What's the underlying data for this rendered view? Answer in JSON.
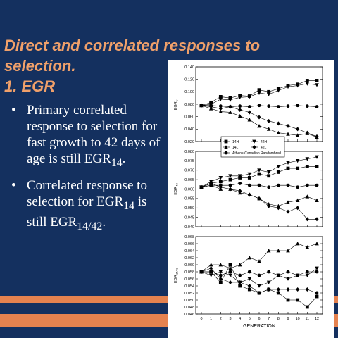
{
  "slide": {
    "title_line1": "Direct and correlated responses to selection.",
    "title_line2": "1.  EGR",
    "bullets": [
      {
        "text_main": "Primary correlated response to selection for fast growth to 42 days of age is still EGR",
        "sub": "14",
        "tail": "."
      },
      {
        "text_main": "Correlated response to selection for EGR",
        "sub": "14",
        "mid": " is still EGR",
        "sub2": "14/42",
        "tail": "."
      }
    ],
    "colors": {
      "background": "#14305f",
      "title": "#f0a06a",
      "stripe": "#e5824f",
      "text": "#ffffff"
    }
  },
  "chart_data": {
    "type": "line",
    "xlabel": "GENERATION",
    "x": [
      0,
      1,
      2,
      3,
      4,
      5,
      6,
      7,
      8,
      9,
      10,
      11,
      12
    ],
    "x_ticks": [
      "0",
      "1",
      "2",
      "3",
      "4",
      "5",
      "6",
      "7",
      "8",
      "9",
      "10",
      "11",
      "12"
    ],
    "legend": [
      {
        "name": "14H",
        "marker": "square"
      },
      {
        "name": "42H",
        "marker": "triangle-down"
      },
      {
        "name": "14L",
        "marker": "triangle-up"
      },
      {
        "name": "42L",
        "marker": "diamond"
      },
      {
        "name": "Athens-Canadian Randombred",
        "marker": "circle"
      }
    ],
    "panels": [
      {
        "ylabel": "EGR14",
        "ylim": [
          0.02,
          0.14
        ],
        "yticks": [
          "0.140",
          "0.120",
          "0.100",
          "0.080",
          "0.060",
          "0.040",
          "0.020"
        ],
        "ytick_values": [
          0.14,
          0.12,
          0.1,
          0.08,
          0.06,
          0.04,
          0.02
        ],
        "series": [
          {
            "name": "14H",
            "marker": "square",
            "values": [
              0.078,
              0.083,
              0.092,
              0.09,
              0.094,
              0.093,
              0.103,
              0.1,
              0.105,
              0.11,
              0.112,
              0.118,
              0.118
            ]
          },
          {
            "name": "42H",
            "marker": "triangle-down",
            "values": [
              0.078,
              0.08,
              0.088,
              0.087,
              0.091,
              0.092,
              0.098,
              0.096,
              0.102,
              0.108,
              0.11,
              0.113,
              0.111
            ]
          },
          {
            "name": "14L",
            "marker": "triangle-up",
            "values": [
              0.078,
              0.073,
              0.068,
              0.067,
              0.061,
              0.055,
              0.045,
              0.04,
              0.034,
              0.032,
              0.03,
              0.033,
              0.027
            ]
          },
          {
            "name": "42L",
            "marker": "diamond",
            "values": [
              0.078,
              0.076,
              0.073,
              0.076,
              0.071,
              0.067,
              0.059,
              0.053,
              0.049,
              0.045,
              0.04,
              0.034,
              0.028
            ]
          },
          {
            "name": "Athens-Canadian Randombred",
            "marker": "circle",
            "values": [
              0.078,
              0.078,
              0.077,
              0.076,
              0.077,
              0.076,
              0.078,
              0.077,
              0.076,
              0.077,
              0.078,
              0.077,
              0.076
            ]
          }
        ]
      },
      {
        "ylabel": "EGR42",
        "ylim": [
          0.04,
          0.08
        ],
        "yticks": [
          "0.080",
          "0.075",
          "0.070",
          "0.065",
          "0.060",
          "0.055",
          "0.050",
          "0.045",
          "0.040"
        ],
        "ytick_values": [
          0.08,
          0.075,
          0.07,
          0.065,
          0.06,
          0.055,
          0.05,
          0.045,
          0.04
        ],
        "series": [
          {
            "name": "14H",
            "marker": "square",
            "values": [
              0.061,
              0.063,
              0.064,
              0.065,
              0.066,
              0.066,
              0.068,
              0.067,
              0.069,
              0.071,
              0.071,
              0.072,
              0.072
            ]
          },
          {
            "name": "42H",
            "marker": "triangle-down",
            "values": [
              0.061,
              0.064,
              0.066,
              0.067,
              0.067,
              0.068,
              0.07,
              0.069,
              0.072,
              0.074,
              0.075,
              0.076,
              0.077
            ]
          },
          {
            "name": "14L",
            "marker": "triangle-up",
            "values": [
              0.061,
              0.062,
              0.06,
              0.06,
              0.058,
              0.057,
              0.055,
              0.052,
              0.051,
              0.053,
              0.054,
              0.056,
              0.054
            ]
          },
          {
            "name": "42L",
            "marker": "diamond",
            "values": [
              0.061,
              0.063,
              0.061,
              0.06,
              0.059,
              0.057,
              0.055,
              0.051,
              0.05,
              0.048,
              0.05,
              0.044,
              0.044
            ]
          },
          {
            "name": "Athens-Canadian Randombred",
            "marker": "circle",
            "values": [
              0.061,
              0.062,
              0.062,
              0.062,
              0.063,
              0.062,
              0.062,
              0.061,
              0.062,
              0.062,
              0.061,
              0.062,
              0.062
            ]
          }
        ]
      },
      {
        "ylabel": "EGR14/42",
        "ylim": [
          0.046,
          0.068
        ],
        "yticks": [
          "0.068",
          "0.066",
          "0.064",
          "0.062",
          "0.060",
          "0.058",
          "0.056",
          "0.054",
          "0.052",
          "0.050",
          "0.048",
          "0.046"
        ],
        "ytick_values": [
          0.068,
          0.066,
          0.064,
          0.062,
          0.06,
          0.058,
          0.056,
          0.054,
          0.052,
          0.05,
          0.048,
          0.046
        ],
        "series": [
          {
            "name": "14H",
            "marker": "square",
            "values": [
              0.058,
              0.058,
              0.055,
              0.06,
              0.054,
              0.053,
              0.052,
              0.053,
              0.052,
              0.05,
              0.05,
              0.048,
              0.051
            ]
          },
          {
            "name": "42H",
            "marker": "triangle-down",
            "values": [
              0.058,
              0.057,
              0.058,
              0.057,
              0.055,
              0.056,
              0.054,
              0.055,
              0.057,
              0.056,
              0.057,
              0.057,
              0.059
            ]
          },
          {
            "name": "14L",
            "marker": "triangle-up",
            "values": [
              0.058,
              0.06,
              0.06,
              0.059,
              0.06,
              0.062,
              0.061,
              0.064,
              0.064,
              0.064,
              0.066,
              0.065,
              0.066
            ]
          },
          {
            "name": "42L",
            "marker": "diamond",
            "values": [
              0.058,
              0.059,
              0.056,
              0.055,
              0.055,
              0.054,
              0.052,
              0.053,
              0.053,
              0.053,
              0.053,
              0.053,
              0.052
            ]
          },
          {
            "name": "Athens-Canadian Randombred",
            "marker": "circle",
            "values": [
              0.058,
              0.058,
              0.057,
              0.058,
              0.057,
              0.058,
              0.057,
              0.058,
              0.057,
              0.058,
              0.057,
              0.058,
              0.058
            ]
          }
        ]
      }
    ]
  }
}
